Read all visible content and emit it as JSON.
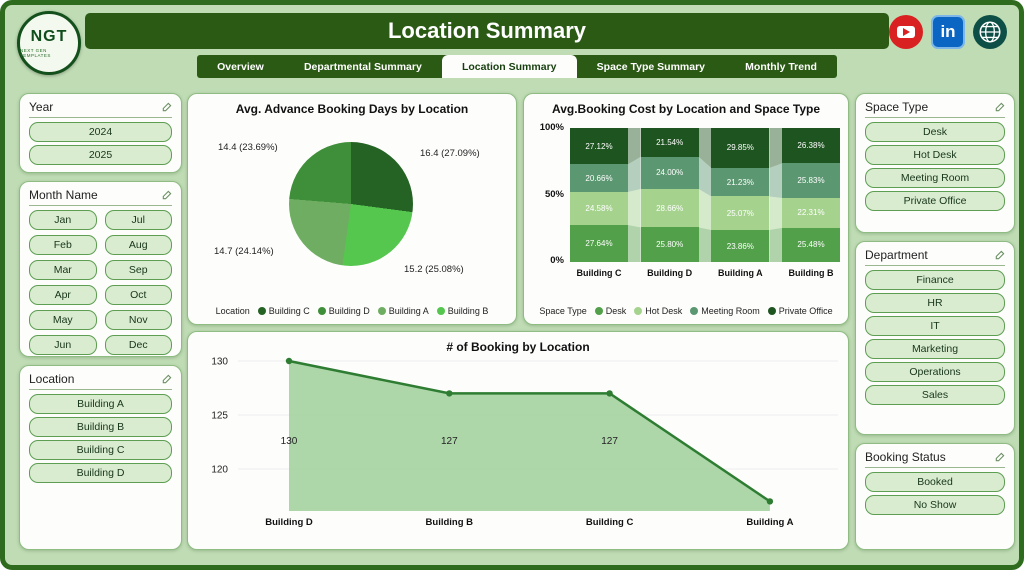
{
  "theme": {
    "header_green": "#2b5a15",
    "page_bg": "#bfdcb4",
    "page_border": "#2e6b1e",
    "panel_border": "#8fbc83",
    "button_bg": "#d9ecd0",
    "button_border": "#5d9e52",
    "youtube_red": "#d92121",
    "linkedin_blue": "#0a66c2"
  },
  "header": {
    "title": "Location Summary",
    "logo": {
      "text": "NGT",
      "subtext": "NEXT GEN TEMPLATES"
    },
    "tabs": [
      {
        "label": "Overview",
        "active": false
      },
      {
        "label": "Departmental Summary",
        "active": false
      },
      {
        "label": "Location Summary",
        "active": true
      },
      {
        "label": "Space Type Summary",
        "active": false
      },
      {
        "label": "Monthly Trend",
        "active": false
      }
    ],
    "social_icons": [
      {
        "name": "youtube-icon"
      },
      {
        "name": "linkedin-icon",
        "text": "in"
      },
      {
        "name": "globe-icon"
      }
    ]
  },
  "slicers": {
    "year": {
      "title": "Year",
      "options": [
        "2024",
        "2025"
      ]
    },
    "month": {
      "title": "Month Name",
      "options": [
        "Jan",
        "Jul",
        "Feb",
        "Aug",
        "Mar",
        "Sep",
        "Apr",
        "Oct",
        "May",
        "Nov",
        "Jun",
        "Dec"
      ]
    },
    "location": {
      "title": "Location",
      "options": [
        "Building A",
        "Building B",
        "Building C",
        "Building D"
      ]
    },
    "space_type": {
      "title": "Space Type",
      "options": [
        "Desk",
        "Hot Desk",
        "Meeting Room",
        "Private Office"
      ]
    },
    "department": {
      "title": "Department",
      "options": [
        "Finance",
        "HR",
        "IT",
        "Marketing",
        "Operations",
        "Sales"
      ]
    },
    "booking_status": {
      "title": "Booking Status",
      "options": [
        "Booked",
        "No Show"
      ]
    }
  },
  "chart_data": [
    {
      "id": "pie",
      "type": "pie",
      "title": "Avg. Advance Booking Days by Location",
      "legend_title": "Location",
      "slices": [
        {
          "label": "Building C",
          "value": 16.4,
          "pct": 27.09,
          "color": "#256325",
          "data_label": "16.4 (27.09%)"
        },
        {
          "label": "Building B",
          "value": 15.2,
          "pct": 25.08,
          "color": "#55c74f",
          "data_label": "15.2 (25.08%)"
        },
        {
          "label": "Building A",
          "value": 14.7,
          "pct": 24.14,
          "color": "#6fae62",
          "data_label": "14.7 (24.14%)"
        },
        {
          "label": "Building D",
          "value": 14.4,
          "pct": 23.69,
          "color": "#3f8f3a",
          "data_label": "14.4 (23.69%)"
        }
      ],
      "legend": [
        "Building C",
        "Building D",
        "Building A",
        "Building B"
      ]
    },
    {
      "id": "ribbon",
      "type": "bar",
      "subtype": "100pct-stacked-ribbon",
      "title": "Avg.Booking Cost by Location and Space Type",
      "legend_title": "Space Type",
      "categories": [
        "Building C",
        "Building D",
        "Building A",
        "Building B"
      ],
      "y_ticks": [
        "100%",
        "50%",
        "0%"
      ],
      "series": [
        {
          "name": "Private Office",
          "color": "#1e5420",
          "values": [
            27.12,
            21.54,
            29.85,
            26.38
          ],
          "labels": [
            "27.12%",
            "21.54%",
            "29.85%",
            "26.38%"
          ]
        },
        {
          "name": "Meeting Room",
          "color": "#5b9770",
          "values": [
            20.66,
            24.0,
            21.23,
            25.83
          ],
          "labels": [
            "20.66%",
            "24.00%",
            "21.23%",
            "25.83%"
          ]
        },
        {
          "name": "Hot Desk",
          "color": "#a5d38e",
          "values": [
            24.58,
            28.66,
            25.07,
            22.31
          ],
          "labels": [
            "24.58%",
            "28.66%",
            "25.07%",
            "22.31%"
          ]
        },
        {
          "name": "Desk",
          "color": "#52a04a",
          "values": [
            27.64,
            25.8,
            23.86,
            25.48
          ],
          "labels": [
            "27.64%",
            "25.80%",
            "23.86%",
            "25.48%"
          ]
        }
      ],
      "legend": [
        "Desk",
        "Hot Desk",
        "Meeting Room",
        "Private Office"
      ]
    },
    {
      "id": "area",
      "type": "area",
      "title": "# of Booking by Location",
      "categories": [
        "Building D",
        "Building B",
        "Building C",
        "Building A"
      ],
      "values": [
        130,
        127,
        127,
        117
      ],
      "data_labels": [
        "130",
        "127",
        "127",
        ""
      ],
      "y_ticks": [
        130,
        125,
        120
      ],
      "ylim": [
        116,
        131
      ],
      "line_color": "#2e7d32",
      "fill_color": "#9fd09a",
      "note": "Building A value estimated from plot; no visible data label"
    }
  ]
}
